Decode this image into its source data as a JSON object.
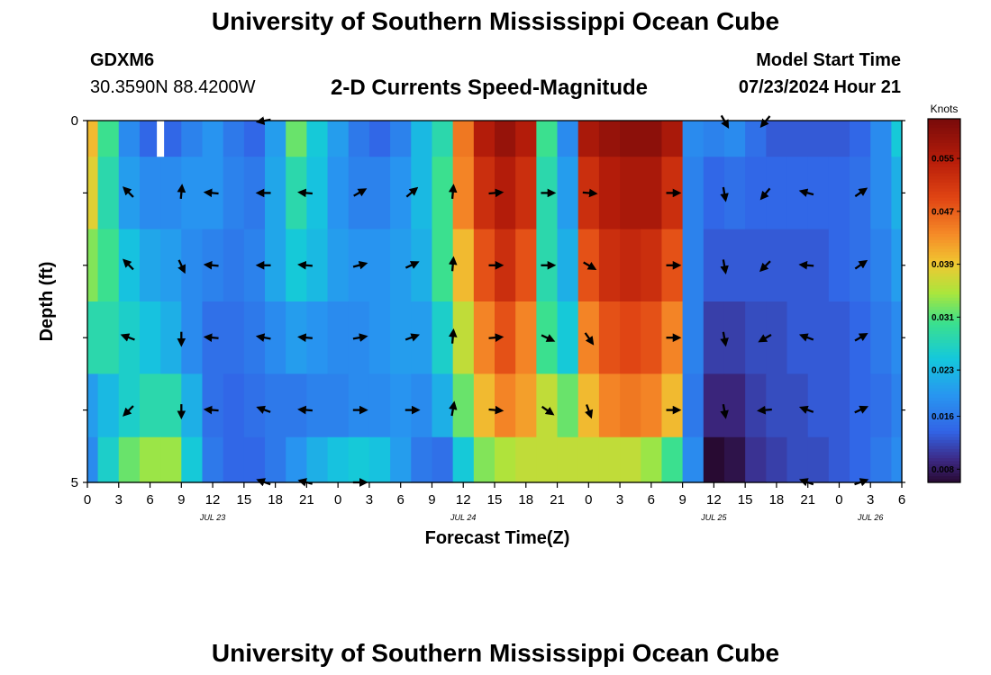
{
  "header": {
    "title": "University of Southern Mississippi Ocean Cube",
    "station_id": "GDXM6",
    "coords": "30.3590N  88.4200W",
    "chart_title": "2-D Currents Speed-Magnitude",
    "model_start_label": "Model Start Time",
    "model_start_value": "07/23/2024 Hour 21",
    "footer_title": "University of Southern Mississippi Ocean Cube"
  },
  "chart_data": {
    "type": "heatmap",
    "title": "2-D Currents Speed-Magnitude",
    "xlabel": "Forecast Time(Z)",
    "ylabel": "Depth (ft)",
    "x_ticks": [
      "0",
      "3",
      "6",
      "9",
      "12",
      "15",
      "18",
      "21",
      "0",
      "3",
      "6",
      "9",
      "12",
      "15",
      "18",
      "21",
      "0",
      "3",
      "6",
      "9",
      "12",
      "15",
      "18",
      "21",
      "0",
      "3",
      "6"
    ],
    "x_range_hours": [
      0,
      78
    ],
    "date_labels": [
      {
        "label": "JUL 23",
        "hour": 12
      },
      {
        "label": "JUL 24",
        "hour": 36
      },
      {
        "label": "JUL 25",
        "hour": 60
      },
      {
        "label": "JUL 26",
        "hour": 75
      }
    ],
    "y_ticks": [
      "0",
      "5"
    ],
    "y_range_ft": [
      0,
      5
    ],
    "colorbar": {
      "title": "Knots",
      "range": [
        0.006,
        0.061
      ],
      "ticks": [
        "0.055",
        "0.047",
        "0.039",
        "0.031",
        "0.023",
        "0.016",
        "0.008"
      ],
      "tick_values": [
        0.055,
        0.047,
        0.039,
        0.031,
        0.023,
        0.016,
        0.008
      ]
    },
    "speed_series": {
      "hours": [
        0,
        2,
        4,
        6,
        8,
        10,
        12,
        14,
        16,
        18,
        20,
        22,
        24,
        26,
        28,
        30,
        32,
        34,
        36,
        38,
        40,
        42,
        44,
        46,
        48,
        50,
        52,
        54,
        56,
        58,
        60,
        62,
        64,
        66,
        68,
        70,
        72,
        74,
        76,
        78
      ],
      "depth_rows": [
        {
          "depth_ft": 0.0,
          "values": [
            0.04,
            0.03,
            0.018,
            0.014,
            0.014,
            0.017,
            0.019,
            0.016,
            0.014,
            0.02,
            0.032,
            0.025,
            0.02,
            0.016,
            0.014,
            0.017,
            0.023,
            0.028,
            0.045,
            0.055,
            0.058,
            0.055,
            0.03,
            0.018,
            0.056,
            0.058,
            0.059,
            0.059,
            0.056,
            0.018,
            0.017,
            0.018,
            0.015,
            0.013,
            0.013,
            0.013,
            0.013,
            0.014,
            0.018,
            0.025
          ]
        },
        {
          "depth_ft": 1.0,
          "values": [
            0.038,
            0.028,
            0.02,
            0.018,
            0.018,
            0.019,
            0.019,
            0.017,
            0.016,
            0.021,
            0.028,
            0.024,
            0.019,
            0.017,
            0.017,
            0.019,
            0.023,
            0.03,
            0.044,
            0.052,
            0.055,
            0.052,
            0.028,
            0.02,
            0.052,
            0.055,
            0.056,
            0.056,
            0.052,
            0.017,
            0.014,
            0.015,
            0.014,
            0.014,
            0.014,
            0.014,
            0.014,
            0.015,
            0.018,
            0.022
          ]
        },
        {
          "depth_ft": 2.0,
          "values": [
            0.033,
            0.03,
            0.024,
            0.021,
            0.02,
            0.018,
            0.017,
            0.016,
            0.017,
            0.021,
            0.025,
            0.023,
            0.02,
            0.019,
            0.019,
            0.02,
            0.022,
            0.03,
            0.04,
            0.048,
            0.052,
            0.048,
            0.028,
            0.022,
            0.048,
            0.052,
            0.053,
            0.052,
            0.048,
            0.017,
            0.013,
            0.013,
            0.013,
            0.013,
            0.013,
            0.013,
            0.014,
            0.015,
            0.017,
            0.02
          ]
        },
        {
          "depth_ft": 3.0,
          "values": [
            0.028,
            0.028,
            0.026,
            0.024,
            0.022,
            0.018,
            0.015,
            0.015,
            0.016,
            0.018,
            0.02,
            0.019,
            0.018,
            0.018,
            0.019,
            0.02,
            0.02,
            0.026,
            0.036,
            0.044,
            0.048,
            0.044,
            0.03,
            0.025,
            0.044,
            0.048,
            0.049,
            0.048,
            0.044,
            0.017,
            0.011,
            0.011,
            0.012,
            0.012,
            0.013,
            0.013,
            0.013,
            0.014,
            0.016,
            0.018
          ]
        },
        {
          "depth_ft": 4.0,
          "values": [
            0.02,
            0.023,
            0.026,
            0.028,
            0.028,
            0.022,
            0.015,
            0.014,
            0.015,
            0.016,
            0.016,
            0.017,
            0.017,
            0.018,
            0.018,
            0.019,
            0.018,
            0.022,
            0.032,
            0.04,
            0.044,
            0.042,
            0.036,
            0.032,
            0.04,
            0.044,
            0.045,
            0.044,
            0.04,
            0.016,
            0.009,
            0.009,
            0.011,
            0.012,
            0.012,
            0.013,
            0.013,
            0.014,
            0.015,
            0.017
          ]
        },
        {
          "depth_ft": 4.75,
          "values": [
            0.018,
            0.026,
            0.032,
            0.034,
            0.034,
            0.025,
            0.016,
            0.014,
            0.014,
            0.016,
            0.019,
            0.022,
            0.024,
            0.025,
            0.024,
            0.02,
            0.016,
            0.015,
            0.025,
            0.033,
            0.035,
            0.036,
            0.036,
            0.036,
            0.036,
            0.036,
            0.036,
            0.034,
            0.03,
            0.018,
            0.006,
            0.007,
            0.01,
            0.011,
            0.012,
            0.012,
            0.013,
            0.014,
            0.016,
            0.018
          ]
        }
      ]
    },
    "missing_data_hour": 7,
    "vectors": {
      "hours": [
        4,
        9,
        12,
        17,
        21,
        26,
        31,
        35,
        39,
        44,
        48,
        56,
        61,
        65,
        69,
        74
      ],
      "depth_rows": [
        {
          "depth_ft": 0.0,
          "directions_deg": [
            null,
            null,
            null,
            260,
            null,
            null,
            null,
            null,
            null,
            null,
            null,
            null,
            150,
            220,
            null,
            null
          ]
        },
        {
          "depth_ft": 1.0,
          "directions_deg": [
            315,
            5,
            275,
            270,
            275,
            60,
            50,
            5,
            85,
            90,
            95,
            90,
            170,
            220,
            285,
            55
          ]
        },
        {
          "depth_ft": 2.0,
          "directions_deg": [
            315,
            155,
            275,
            270,
            275,
            75,
            65,
            5,
            90,
            90,
            120,
            90,
            170,
            225,
            275,
            55
          ]
        },
        {
          "depth_ft": 3.0,
          "directions_deg": [
            290,
            180,
            275,
            280,
            275,
            80,
            70,
            5,
            85,
            115,
            145,
            90,
            170,
            240,
            290,
            60
          ]
        },
        {
          "depth_ft": 4.0,
          "directions_deg": [
            225,
            180,
            275,
            290,
            275,
            90,
            90,
            10,
            95,
            125,
            160,
            90,
            170,
            265,
            290,
            65
          ]
        },
        {
          "depth_ft": 5.0,
          "directions_deg": [
            null,
            null,
            null,
            290,
            285,
            90,
            null,
            null,
            null,
            null,
            null,
            null,
            null,
            null,
            290,
            70
          ]
        }
      ]
    }
  }
}
